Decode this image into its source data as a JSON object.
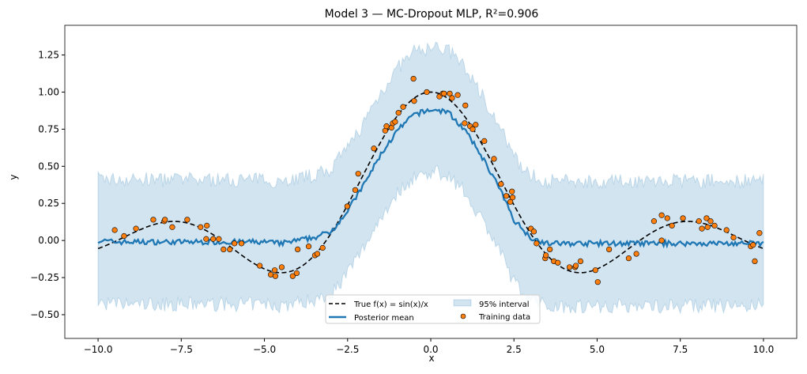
{
  "chart_data": {
    "type": "line",
    "title": "Model 3 — MC-Dropout MLP, R²=0.906",
    "xlabel": "x",
    "ylabel": "y",
    "xlim": [
      -11,
      11
    ],
    "ylim": [
      -0.66,
      1.45
    ],
    "xticks": [
      -10,
      -7.5,
      -5,
      -2.5,
      0,
      2.5,
      5,
      7.5,
      10
    ],
    "xtick_labels": [
      "−10.0",
      "−7.5",
      "−5.0",
      "−2.5",
      "0.0",
      "2.5",
      "5.0",
      "7.5",
      "10.0"
    ],
    "yticks": [
      -0.5,
      -0.25,
      0,
      0.25,
      0.5,
      0.75,
      1.0,
      1.25
    ],
    "ytick_labels": [
      "−0.50",
      "−0.25",
      "0.00",
      "0.25",
      "0.50",
      "0.75",
      "1.00",
      "1.25"
    ],
    "grid": false,
    "legend_position": "lower-center",
    "legend": {
      "true_fn": "True f(x) = sin(x)/x",
      "mean": "Posterior mean",
      "interval": "95% interval",
      "train": "Training data"
    },
    "colors": {
      "mean": "#1f77b4",
      "band": "#1f77b4",
      "true": "#000000",
      "train": "#ff7f0e"
    },
    "posterior_mean": {
      "x": [
        -10,
        -9.5,
        -9,
        -8.5,
        -8,
        -7.5,
        -7,
        -6.5,
        -6,
        -5.5,
        -5,
        -4.5,
        -4,
        -3.5,
        -3,
        -2.5,
        -2,
        -1.5,
        -1,
        -0.5,
        0,
        0.5,
        1,
        1.5,
        2,
        2.5,
        3,
        3.5,
        4,
        4.5,
        5,
        5.5,
        6,
        6.5,
        7,
        7.5,
        8,
        8.5,
        9,
        9.5,
        10
      ],
      "y": [
        0,
        -0.01,
        -0.01,
        -0.01,
        -0.01,
        -0.01,
        -0.01,
        -0.01,
        -0.01,
        -0.01,
        -0.01,
        -0.02,
        0,
        0.02,
        0.06,
        0.2,
        0.38,
        0.58,
        0.74,
        0.85,
        0.88,
        0.87,
        0.75,
        0.58,
        0.38,
        0.14,
        0.02,
        -0.02,
        -0.02,
        -0.02,
        -0.02,
        -0.02,
        -0.02,
        -0.02,
        -0.02,
        -0.02,
        -0.02,
        -0.02,
        -0.02,
        -0.02,
        -0.02
      ]
    },
    "interval_halfwidth": 0.42,
    "training_data": {
      "x": [
        -9.5,
        -9.22,
        -8.86,
        -8.34,
        -8.01,
        -7.99,
        -7.77,
        -7.32,
        -6.92,
        -6.73,
        -6.75,
        -6.54,
        -6.37,
        -6.23,
        -6.04,
        -5.9,
        -5.69,
        -5.14,
        -4.81,
        -4.69,
        -4.67,
        -4.48,
        -4.15,
        -4.03,
        -4.0,
        -3.67,
        -3.48,
        -3.41,
        -3.25,
        -2.51,
        -2.27,
        -2.18,
        -1.71,
        -1.37,
        -1.33,
        -1.18,
        -1.14,
        -1.07,
        -0.97,
        -0.83,
        -0.52,
        -0.5,
        -0.12,
        0.26,
        0.36,
        0.4,
        0.57,
        0.64,
        0.81,
        1.04,
        1.02,
        1.18,
        1.26,
        1.35,
        1.61,
        1.9,
        2.11,
        2.27,
        2.44,
        2.46,
        2.39,
        3.01,
        3.1,
        3.18,
        3.44,
        3.46,
        3.58,
        3.7,
        3.82,
        4.17,
        4.34,
        4.36,
        4.5,
        4.95,
        5.02,
        5.36,
        5.95,
        6.18,
        6.71,
        6.94,
        7.11,
        7.25,
        6.94,
        7.58,
        8.06,
        8.15,
        8.29,
        8.32,
        8.41,
        8.53,
        8.89,
        9.1,
        9.62,
        9.69,
        9.74,
        9.88
      ],
      "y": [
        0.07,
        0.03,
        0.08,
        0.14,
        0.13,
        0.14,
        0.09,
        0.14,
        0.09,
        0.1,
        0.01,
        0.01,
        0.01,
        -0.06,
        -0.06,
        -0.02,
        -0.02,
        -0.17,
        -0.23,
        -0.2,
        -0.24,
        -0.18,
        -0.24,
        -0.22,
        -0.06,
        -0.04,
        -0.1,
        -0.09,
        -0.05,
        0.23,
        0.34,
        0.45,
        0.62,
        0.74,
        0.77,
        0.76,
        0.79,
        0.8,
        0.86,
        0.9,
        1.09,
        0.94,
        1.0,
        0.97,
        0.99,
        0.99,
        0.99,
        0.96,
        0.98,
        0.91,
        0.79,
        0.77,
        0.75,
        0.78,
        0.67,
        0.55,
        0.38,
        0.3,
        0.33,
        0.29,
        0.26,
        0.08,
        0.06,
        -0.02,
        -0.12,
        -0.1,
        -0.06,
        -0.14,
        -0.15,
        -0.18,
        -0.18,
        -0.17,
        -0.14,
        -0.2,
        -0.28,
        -0.06,
        -0.12,
        -0.09,
        0.13,
        0.17,
        0.15,
        0.1,
        0.0,
        0.15,
        0.13,
        0.08,
        0.15,
        0.09,
        0.13,
        0.1,
        0.07,
        0.02,
        -0.04,
        -0.03,
        -0.14,
        0.05
      ]
    }
  }
}
